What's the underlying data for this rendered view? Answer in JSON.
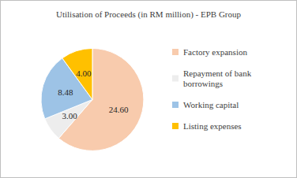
{
  "chart_data": {
    "type": "pie",
    "title": "Utilisation of Proceeds (in RM million) - EPB Group",
    "categories": [
      "Factory expansion",
      "Repayment of bank borrowings",
      "Working capital",
      "Listing expenses"
    ],
    "values": [
      24.6,
      3.0,
      8.48,
      4.0
    ],
    "value_labels": [
      "24.60",
      "3.00",
      "8.48",
      "4.00"
    ],
    "colors": [
      "#f8cbad",
      "#ededed",
      "#9dc3e6",
      "#ffc000"
    ],
    "data_labels": true,
    "legend": "right"
  }
}
